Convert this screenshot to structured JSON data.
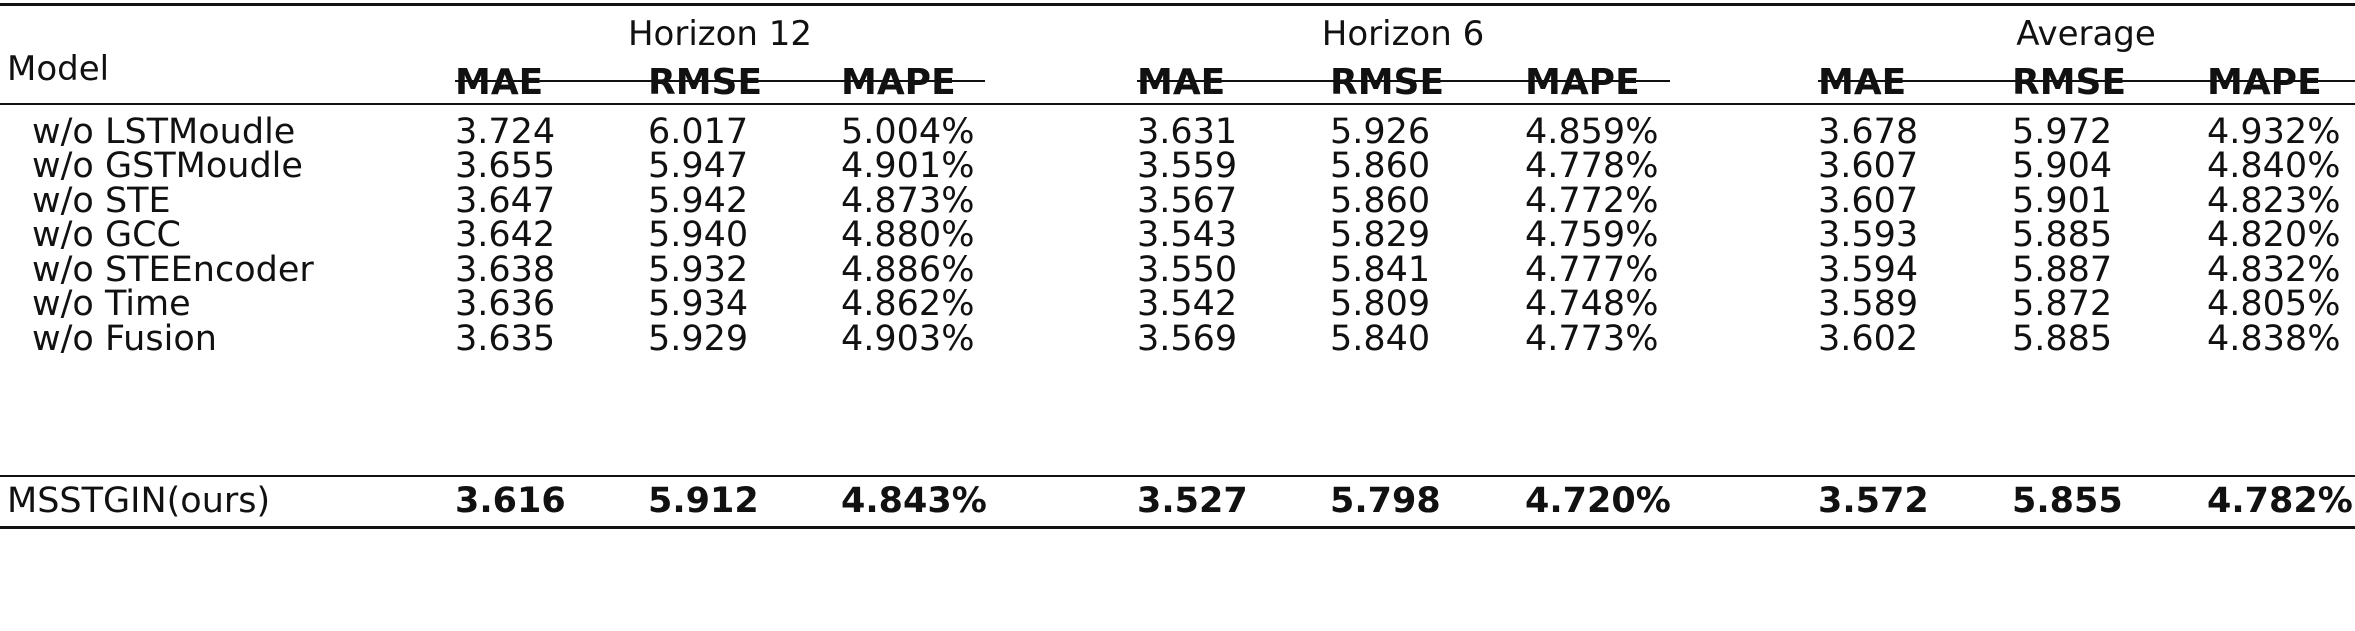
{
  "table": {
    "model_header": "Model",
    "groups": [
      "Horizon 12",
      "Horizon 6",
      "Average"
    ],
    "metrics": [
      "MAE",
      "RMSE",
      "MAPE"
    ],
    "rows": [
      {
        "model": "w/o LSTMoudle",
        "values": [
          "3.724",
          "6.017",
          "5.004%",
          "3.631",
          "5.926",
          "4.859%",
          "3.678",
          "5.972",
          "4.932%"
        ]
      },
      {
        "model": "w/o GSTMoudle",
        "values": [
          "3.655",
          "5.947",
          "4.901%",
          "3.559",
          "5.860",
          "4.778%",
          "3.607",
          "5.904",
          "4.840%"
        ]
      },
      {
        "model": "w/o STE",
        "values": [
          "3.647",
          "5.942",
          "4.873%",
          "3.567",
          "5.860",
          "4.772%",
          "3.607",
          "5.901",
          "4.823%"
        ]
      },
      {
        "model": "w/o GCC",
        "values": [
          "3.642",
          "5.940",
          "4.880%",
          "3.543",
          "5.829",
          "4.759%",
          "3.593",
          "5.885",
          "4.820%"
        ]
      },
      {
        "model": "w/o STEEncoder",
        "values": [
          "3.638",
          "5.932",
          "4.886%",
          "3.550",
          "5.841",
          "4.777%",
          "3.594",
          "5.887",
          "4.832%"
        ]
      },
      {
        "model": "w/o Time",
        "values": [
          "3.636",
          "5.934",
          "4.862%",
          "3.542",
          "5.809",
          "4.748%",
          "3.589",
          "5.872",
          "4.805%"
        ]
      },
      {
        "model": "w/o Fusion",
        "values": [
          "3.635",
          "5.929",
          "4.903%",
          "3.569",
          "5.840",
          "4.773%",
          "3.602",
          "5.885",
          "4.838%"
        ]
      }
    ],
    "final_row": {
      "model": "MSSTGIN(ours)",
      "values": [
        "3.616",
        "5.912",
        "4.843%",
        "3.527",
        "5.798",
        "4.720%",
        "3.572",
        "5.855",
        "4.782%"
      ]
    }
  }
}
